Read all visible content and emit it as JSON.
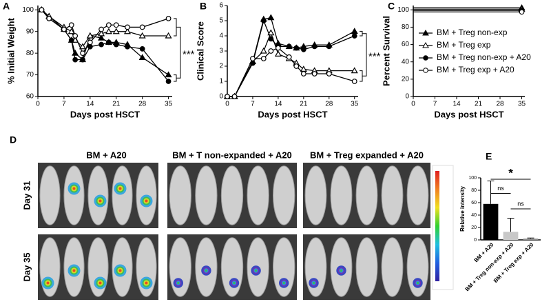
{
  "chart_data": [
    {
      "type": "line",
      "panel": "A",
      "y_label": "% Initial Weight",
      "x_label": "Days post HSCT",
      "xlim": [
        0,
        36
      ],
      "xticks": [
        0,
        7,
        14,
        21,
        28,
        35
      ],
      "ylim": [
        60,
        102
      ],
      "yticks": [
        60,
        70,
        80,
        90,
        100
      ],
      "x": [
        1,
        3,
        7,
        9,
        10,
        12,
        14,
        17,
        19,
        21,
        24,
        28,
        35
      ],
      "series": [
        {
          "marker": "triangle",
          "filled": true,
          "color": "#000000",
          "values": [
            100,
            97,
            91,
            86,
            80,
            77,
            88,
            87,
            85,
            85,
            84,
            78,
            70
          ]
        },
        {
          "marker": "triangle",
          "filled": false,
          "color": "#000000",
          "values": [
            100,
            97,
            92,
            90,
            86,
            83,
            88,
            89,
            90,
            90,
            90,
            88,
            88
          ]
        },
        {
          "marker": "circle",
          "filled": true,
          "color": "#000000",
          "values": [
            100,
            96,
            91,
            86,
            77,
            77,
            83,
            84,
            85,
            84,
            83,
            82,
            67
          ]
        },
        {
          "marker": "circle",
          "filled": false,
          "color": "#000000",
          "values": [
            100,
            96,
            91,
            93,
            88,
            80,
            85,
            91,
            93,
            93,
            92,
            92,
            96
          ]
        }
      ],
      "annotation": "***"
    },
    {
      "type": "line",
      "panel": "B",
      "y_label": "Clinical Score",
      "x_label": "Days post HSCT",
      "xlim": [
        0,
        36
      ],
      "xticks": [
        0,
        7,
        14,
        21,
        28,
        35
      ],
      "ylim": [
        0,
        6
      ],
      "yticks": [
        0,
        1,
        2,
        3,
        4,
        5,
        6
      ],
      "x": [
        0,
        2,
        7,
        10,
        12,
        14,
        17,
        19,
        21,
        24,
        28,
        35
      ],
      "series": [
        {
          "marker": "triangle",
          "filled": true,
          "color": "#000000",
          "values": [
            0,
            0,
            2.3,
            5.1,
            5.2,
            3.5,
            3.3,
            3.2,
            3.3,
            3.4,
            3.4,
            4.3
          ]
        },
        {
          "marker": "triangle",
          "filled": false,
          "color": "#000000",
          "values": [
            0,
            0,
            2.3,
            3.0,
            4.2,
            2.8,
            2.5,
            2.2,
            1.8,
            1.7,
            1.7,
            1.7
          ]
        },
        {
          "marker": "circle",
          "filled": true,
          "color": "#000000",
          "values": [
            0,
            0,
            2.2,
            5.0,
            3.8,
            3.3,
            3.3,
            3.2,
            3.1,
            3.3,
            3.3,
            4.0
          ]
        },
        {
          "marker": "circle",
          "filled": false,
          "color": "#000000",
          "values": [
            0,
            0,
            2.5,
            2.5,
            3.0,
            3.2,
            2.6,
            2.0,
            1.5,
            1.5,
            1.5,
            1.0
          ]
        }
      ],
      "annotation": "***"
    },
    {
      "type": "line",
      "panel": "C",
      "y_label": "Percent Survival",
      "x_label": "Days post HSCT",
      "xlim": [
        0,
        36
      ],
      "xticks": [
        0,
        7,
        14,
        21,
        28,
        35
      ],
      "ylim": [
        0,
        105
      ],
      "yticks": [
        0,
        20,
        40,
        60,
        80,
        100
      ],
      "x": [
        0,
        35
      ],
      "legend": "upper right",
      "series": [
        {
          "name": "BM + Treg non-exp",
          "marker": "triangle",
          "filled": true,
          "color": "#000000",
          "values": [
            100,
            100
          ]
        },
        {
          "name": "BM + Treg exp",
          "marker": "triangle",
          "filled": false,
          "color": "#000000",
          "values": [
            100,
            100
          ]
        },
        {
          "name": "BM + Treg non-exp + A20",
          "marker": "circle",
          "filled": true,
          "color": "#000000",
          "values": [
            100,
            100
          ]
        },
        {
          "name": "BM + Treg exp + A20",
          "marker": "circle",
          "filled": false,
          "color": "#000000",
          "values": [
            100,
            100
          ]
        }
      ]
    },
    {
      "type": "bar",
      "panel": "E",
      "y_label": "Relative intensity",
      "ylim": [
        0,
        100
      ],
      "yticks": [
        0,
        20,
        40,
        60,
        80,
        100
      ],
      "categories": [
        "BM + A20",
        "BM + Treg non-exp + A20",
        "BM + Treg exp + A20"
      ],
      "values": [
        58,
        13,
        2
      ],
      "errors": [
        37,
        22,
        1
      ],
      "colors": [
        "#000000",
        "#c8c8c8",
        "#8c8c8c"
      ],
      "annotations": [
        "*",
        "ns",
        "ns"
      ]
    }
  ],
  "imaging": {
    "panel": "D",
    "groups": [
      "BM + A20",
      "BM + T non-expanded + A20",
      "BM + Treg expanded + A20"
    ],
    "rows": [
      "Day 31",
      "Day 35"
    ]
  }
}
